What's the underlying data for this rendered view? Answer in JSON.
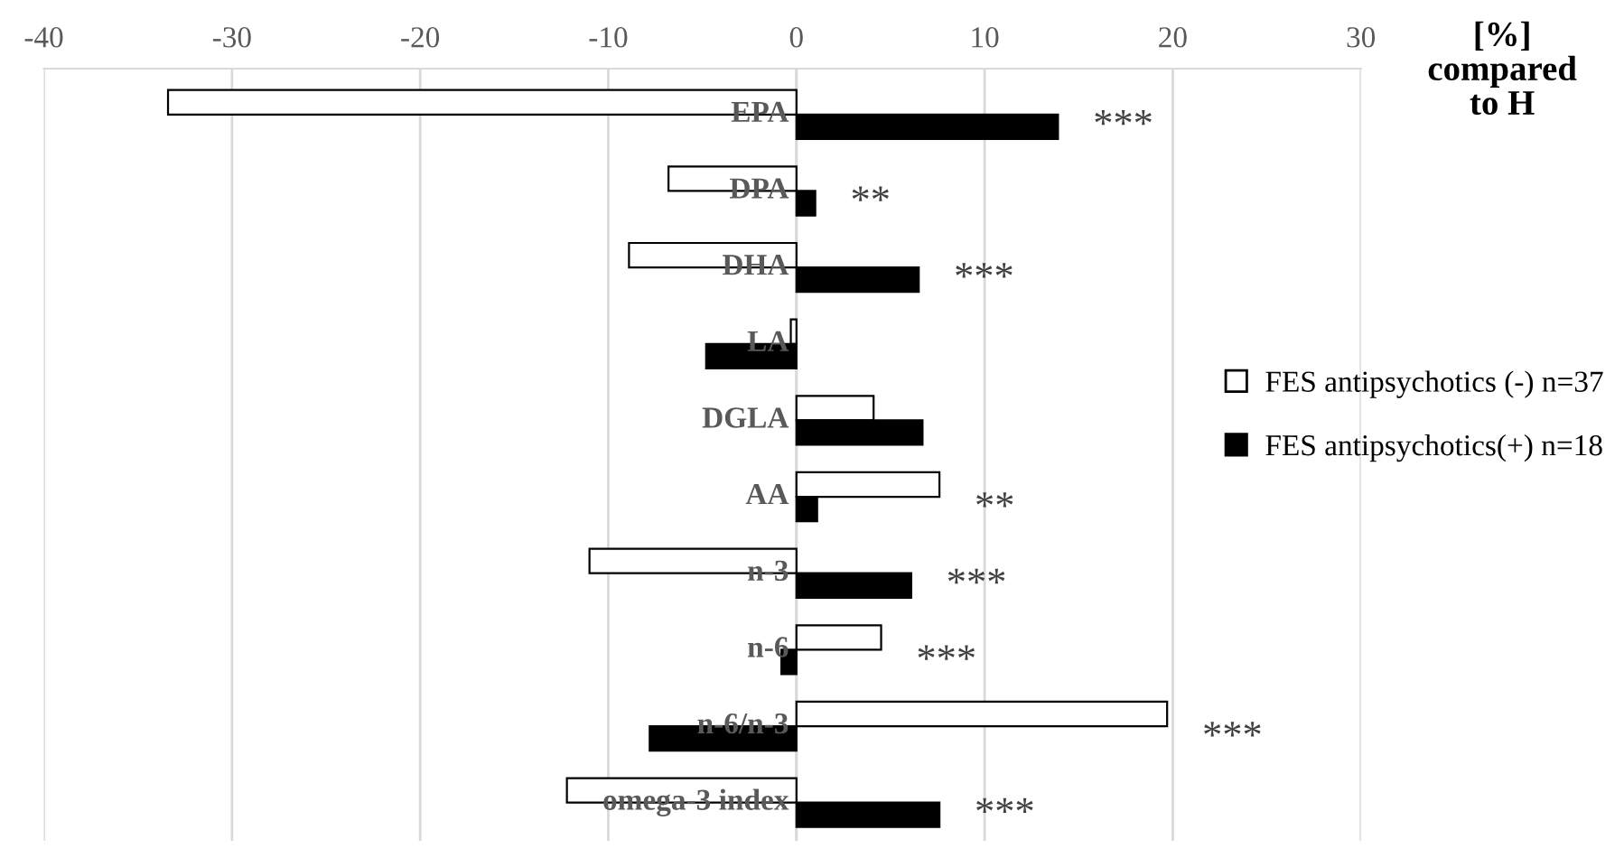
{
  "chart_data": {
    "type": "bar",
    "orientation": "horizontal",
    "xlabel": "[%]\ncompared\nto H",
    "categories": [
      "EPA",
      "DPA",
      "DHA",
      "LA",
      "DGLA",
      "AA",
      "n-3",
      "n-6",
      "n-6/n-3",
      "omega-3 index"
    ],
    "series": [
      {
        "name": "FES antipsychotics (-) n=37",
        "color": "#ffffff",
        "values": [
          -33.4,
          -6.8,
          -8.9,
          -0.3,
          4.1,
          7.6,
          -11.0,
          4.5,
          19.7,
          -12.2
        ]
      },
      {
        "name": "FES antipsychotics(+) n=18",
        "color": "#000000",
        "values": [
          13.9,
          1.0,
          6.5,
          -4.8,
          6.7,
          1.1,
          6.1,
          -0.8,
          -7.8,
          7.6
        ]
      }
    ],
    "xlim": [
      -40,
      30
    ],
    "xticks": [
      -40,
      -30,
      -20,
      -10,
      0,
      10,
      20,
      30
    ],
    "grid": "x",
    "legend": "right",
    "annotations": [
      {
        "text": "***",
        "x": 13.9,
        "y": "EPA"
      },
      {
        "text": "**",
        "x": 1.0,
        "y": "DPA"
      },
      {
        "text": "***",
        "x": 6.5,
        "y": "DHA"
      },
      {
        "text": "**",
        "x": 7.6,
        "y": "AA"
      },
      {
        "text": "***",
        "x": 6.1,
        "y": "n-3"
      },
      {
        "text": "***",
        "x": 4.5,
        "y": "n-6"
      },
      {
        "text": "***",
        "x": 19.7,
        "y": "n-6/n-3"
      },
      {
        "text": "***",
        "x": 7.6,
        "y": "omega-3 index"
      }
    ]
  }
}
